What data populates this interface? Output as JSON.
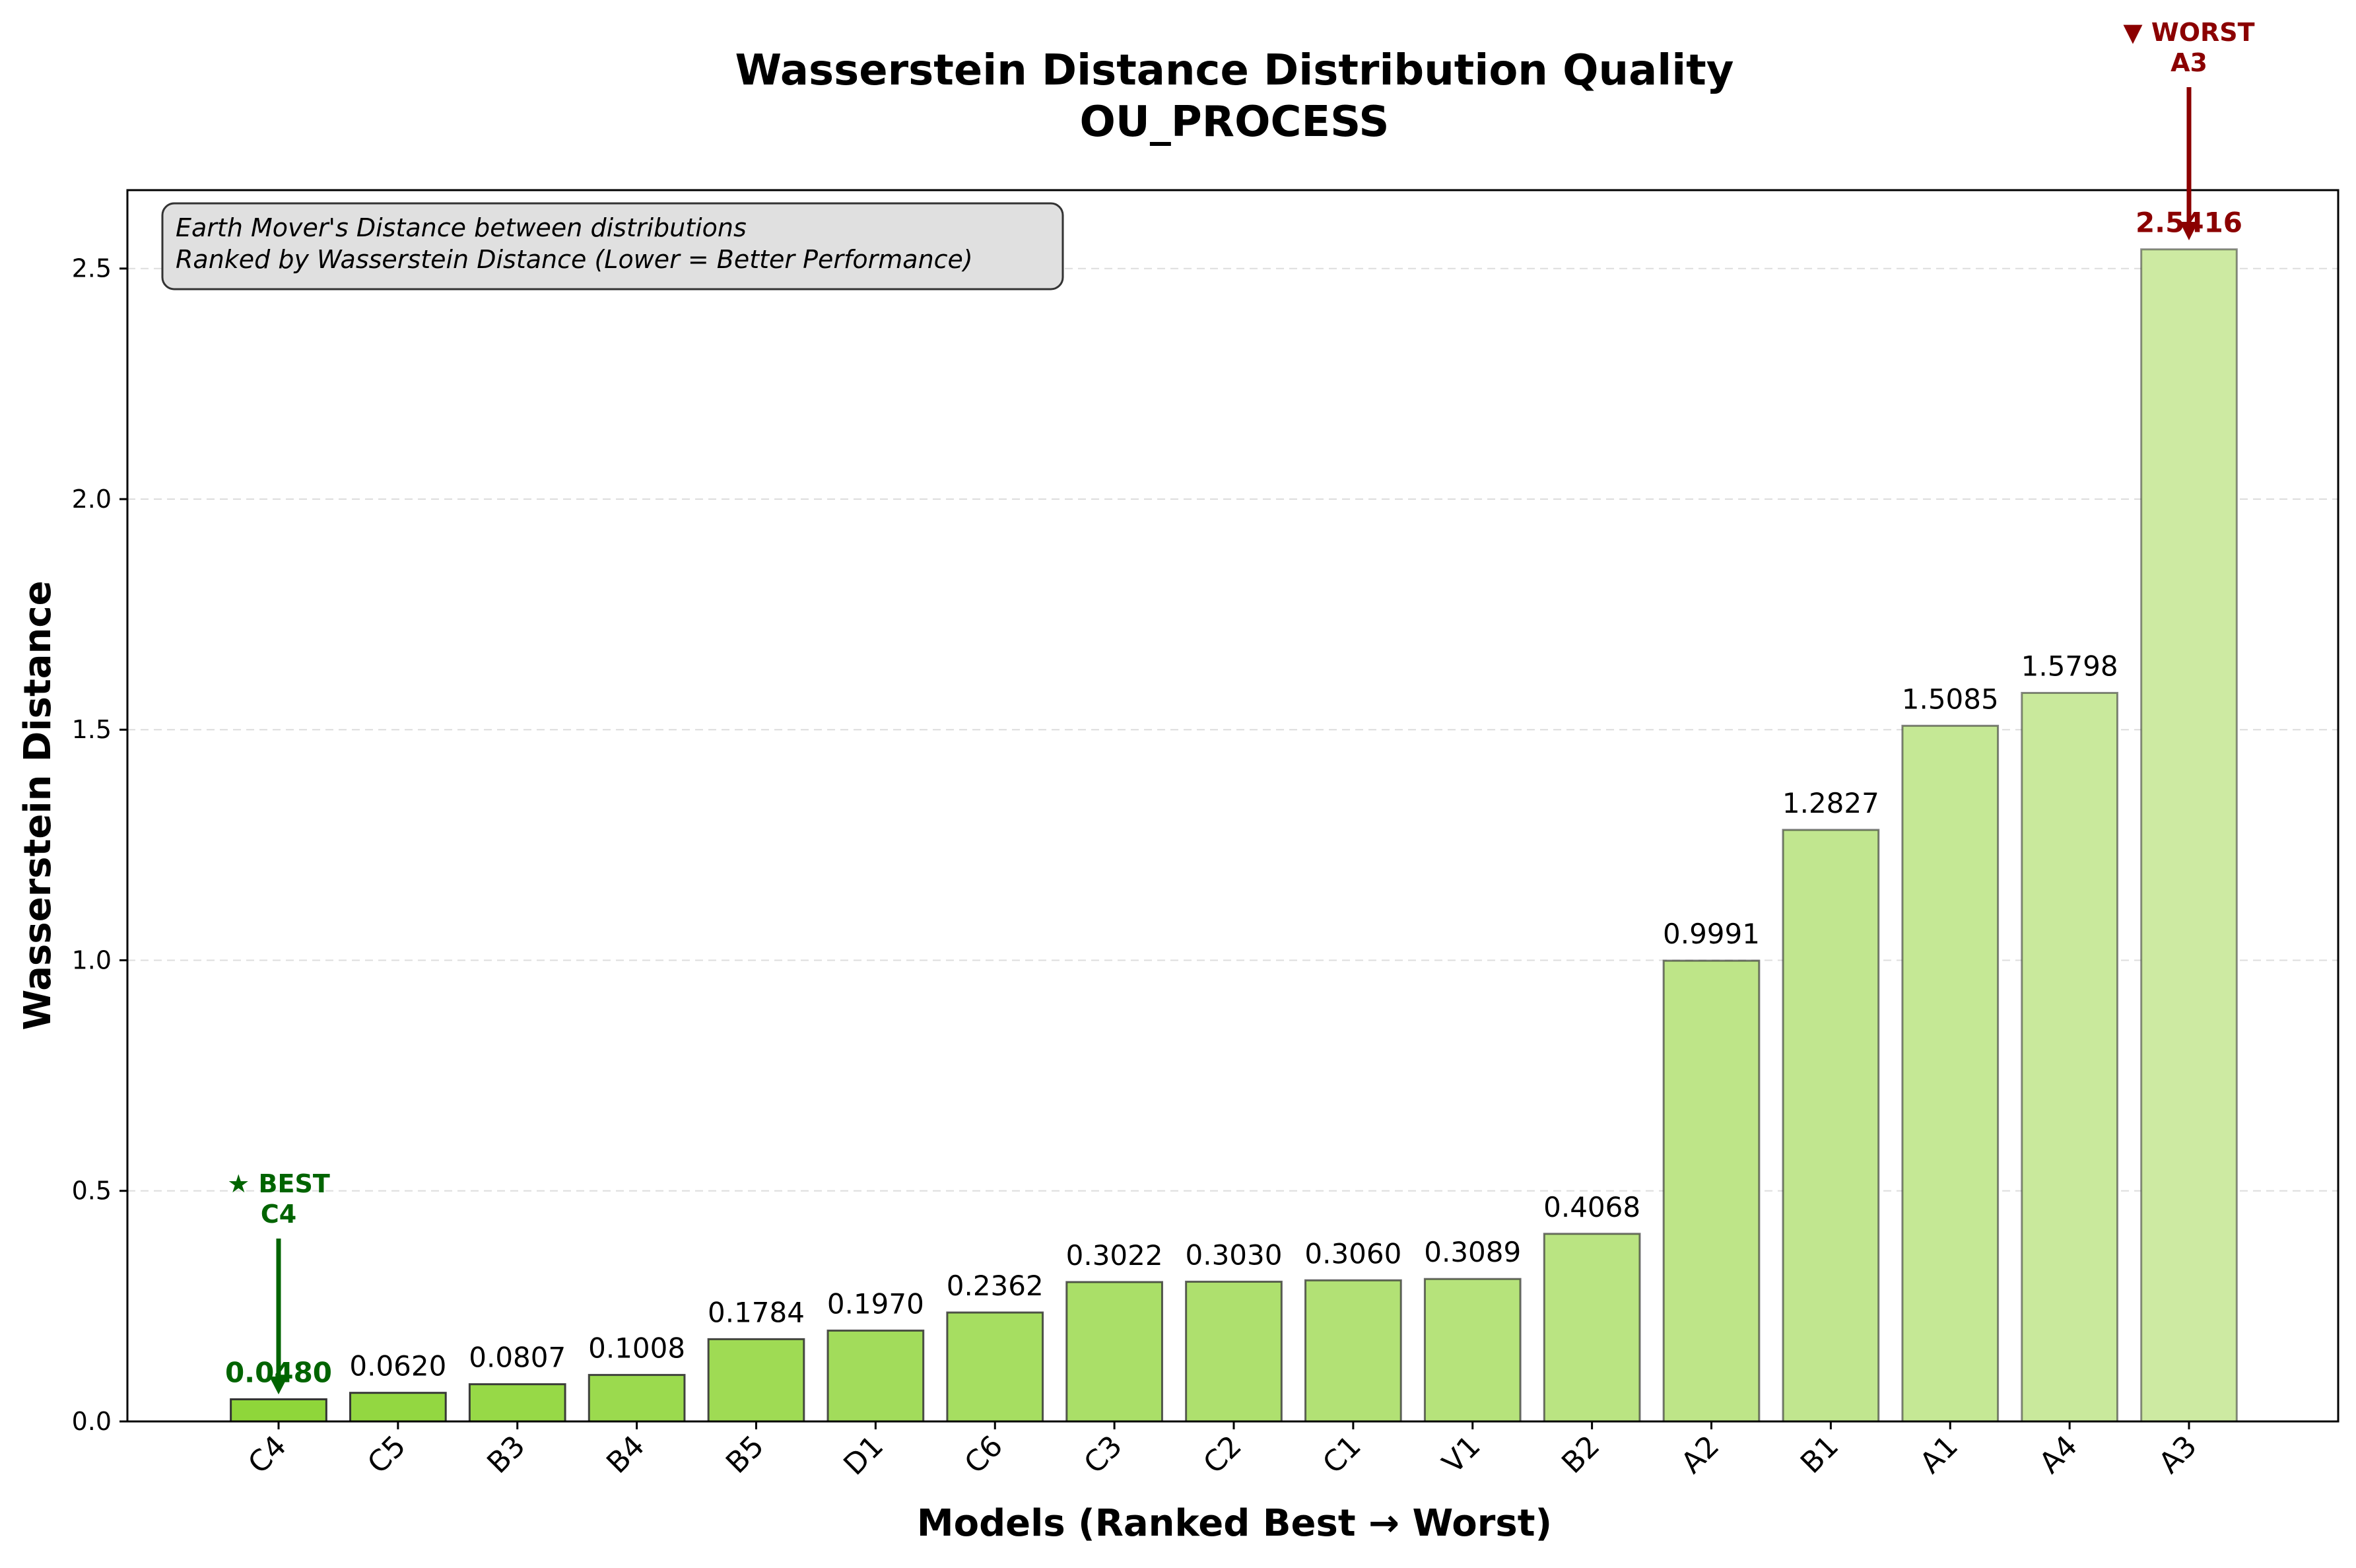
{
  "chart_data": {
    "type": "bar",
    "title": "Wasserstein Distance Distribution Quality",
    "subtitle": "OU_PROCESS",
    "xlabel": "Models (Ranked Best → Worst)",
    "ylabel": "Wasserstein Distance",
    "ylim": [
      0,
      2.67
    ],
    "yticks": [
      0.0,
      0.5,
      1.0,
      1.5,
      2.0,
      2.5
    ],
    "ytick_labels": [
      "0.0",
      "0.5",
      "1.0",
      "1.5",
      "2.0",
      "2.5"
    ],
    "grid": "y-dashed",
    "categories": [
      "C4",
      "C5",
      "B3",
      "B4",
      "B5",
      "D1",
      "C6",
      "C3",
      "C2",
      "C1",
      "V1",
      "B2",
      "A2",
      "B1",
      "A1",
      "A4",
      "A3"
    ],
    "values": [
      0.048,
      0.062,
      0.0807,
      0.1008,
      0.1784,
      0.197,
      0.2362,
      0.3022,
      0.303,
      0.306,
      0.3089,
      0.4068,
      0.9991,
      1.2827,
      1.5085,
      1.5798,
      2.5416
    ],
    "value_labels": [
      "0.0480",
      "0.0620",
      "0.0807",
      "0.1008",
      "0.1784",
      "0.1970",
      "0.2362",
      "0.3022",
      "0.3030",
      "0.3060",
      "0.3089",
      "0.4068",
      "0.9991",
      "1.2827",
      "1.5085",
      "1.5798",
      "2.5416"
    ],
    "info_box": {
      "line1": "Earth Mover's Distance between distributions",
      "line2": "Ranked by Wasserstein Distance (Lower = Better Performance)"
    },
    "annotations": {
      "best": {
        "line1": "★ BEST",
        "line2": "C4",
        "index": 0,
        "color": "#006400"
      },
      "worst": {
        "line1": "▼ WORST",
        "line2": "A3",
        "index": 16,
        "color": "#8b0000"
      }
    },
    "colors": {
      "bar_start": "#8fd63a",
      "bar_end": "#cdeaa2",
      "edge": "#333333",
      "grid": "#dddddd",
      "info_box_bg": "#e0e0e0"
    }
  }
}
